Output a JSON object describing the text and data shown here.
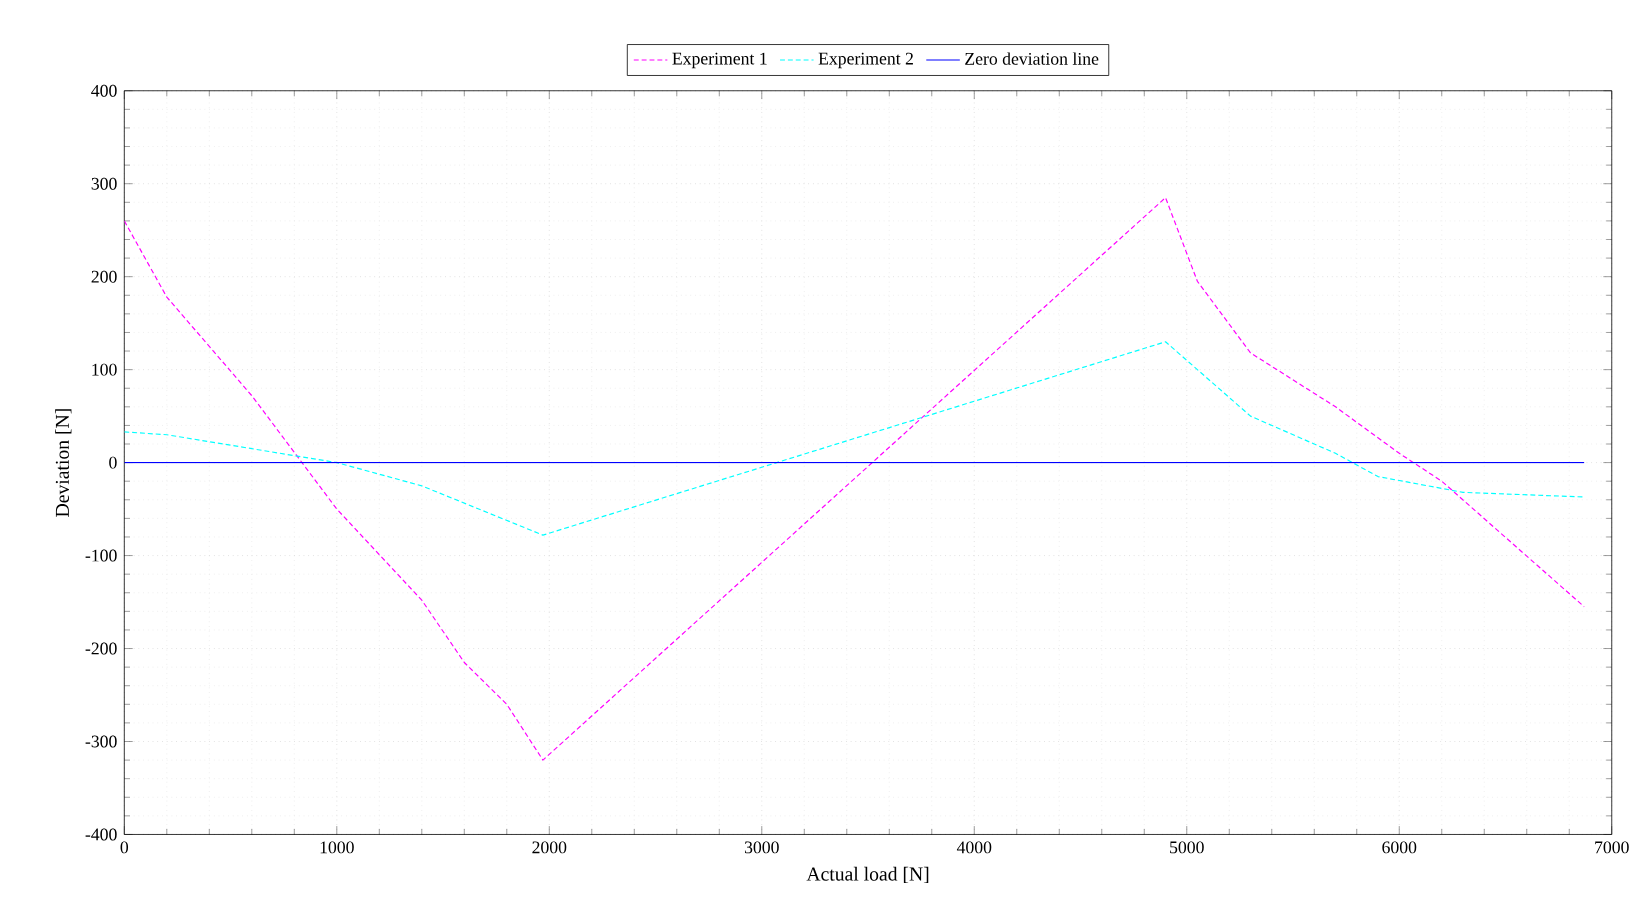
{
  "chart_data": {
    "type": "line",
    "xlabel": "Actual load [N]",
    "ylabel": "Deviation [N]",
    "xlim": [
      0,
      7000
    ],
    "ylim": [
      -400,
      400
    ],
    "xticks": [
      0,
      1000,
      2000,
      3000,
      4000,
      5000,
      6000,
      7000
    ],
    "yticks": [
      -400,
      -300,
      -200,
      -100,
      0,
      100,
      200,
      300,
      400
    ],
    "grid": true,
    "legend": "top",
    "marker": "none",
    "series": [
      {
        "name": "Experiment 1",
        "color": "#ff00ff",
        "line_style": "dashed",
        "x": [
          0,
          200,
          600,
          1000,
          1400,
          1600,
          1800,
          1970,
          4900,
          5050,
          5300,
          5700,
          6000,
          6200,
          6870
        ],
        "values": [
          260,
          178,
          72,
          -50,
          -148,
          -215,
          -260,
          -320,
          285,
          195,
          118,
          60,
          10,
          -20,
          -155
        ]
      },
      {
        "name": "Experiment 2",
        "color": "#00ffff",
        "line_style": "dashed",
        "x": [
          0,
          200,
          600,
          1000,
          1400,
          1970,
          3000,
          4900,
          5300,
          5700,
          5900,
          6300,
          6870
        ],
        "values": [
          33,
          30,
          15,
          0,
          -25,
          -78,
          -5,
          130,
          50,
          10,
          -15,
          -32,
          -37
        ]
      },
      {
        "name": "Zero deviation line",
        "color": "#0000ff",
        "line_style": "solid",
        "x": [
          0,
          6870
        ],
        "values": [
          0,
          0
        ]
      }
    ]
  }
}
